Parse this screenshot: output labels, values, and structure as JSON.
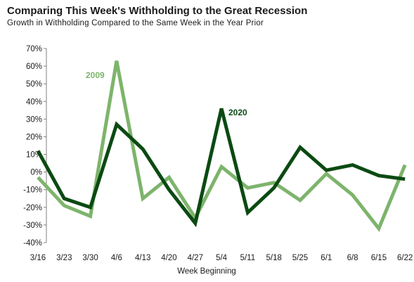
{
  "chart_data": {
    "type": "line",
    "title": "Comparing This Week's Withholding to the Great Recession",
    "subtitle": "Growth in Withholding Compared to the Same Week in the Year Prior",
    "xlabel": "Week Beginning",
    "ylabel": "",
    "categories": [
      "3/16",
      "3/23",
      "3/30",
      "4/6",
      "4/13",
      "4/20",
      "4/27",
      "5/4",
      "5/11",
      "5/18",
      "5/25",
      "6/1",
      "6/8",
      "6/15",
      "6/22"
    ],
    "ylim": [
      -40,
      70
    ],
    "yticks": [
      -40,
      -30,
      -20,
      -10,
      0,
      10,
      20,
      30,
      40,
      50,
      60,
      70
    ],
    "ytick_format": "percent",
    "grid": false,
    "series": [
      {
        "name": "2009",
        "color": "#7db46c",
        "values": [
          -3,
          -19,
          -25,
          63,
          -15,
          -3,
          -26,
          3,
          -9,
          -6,
          -16,
          -1,
          -13,
          -32,
          4
        ]
      },
      {
        "name": "2020",
        "color": "#0b4a12",
        "values": [
          12,
          -15,
          -20,
          27,
          13,
          -10,
          -29,
          36,
          -23,
          -9,
          14,
          1,
          4,
          -2,
          -4
        ]
      }
    ]
  }
}
